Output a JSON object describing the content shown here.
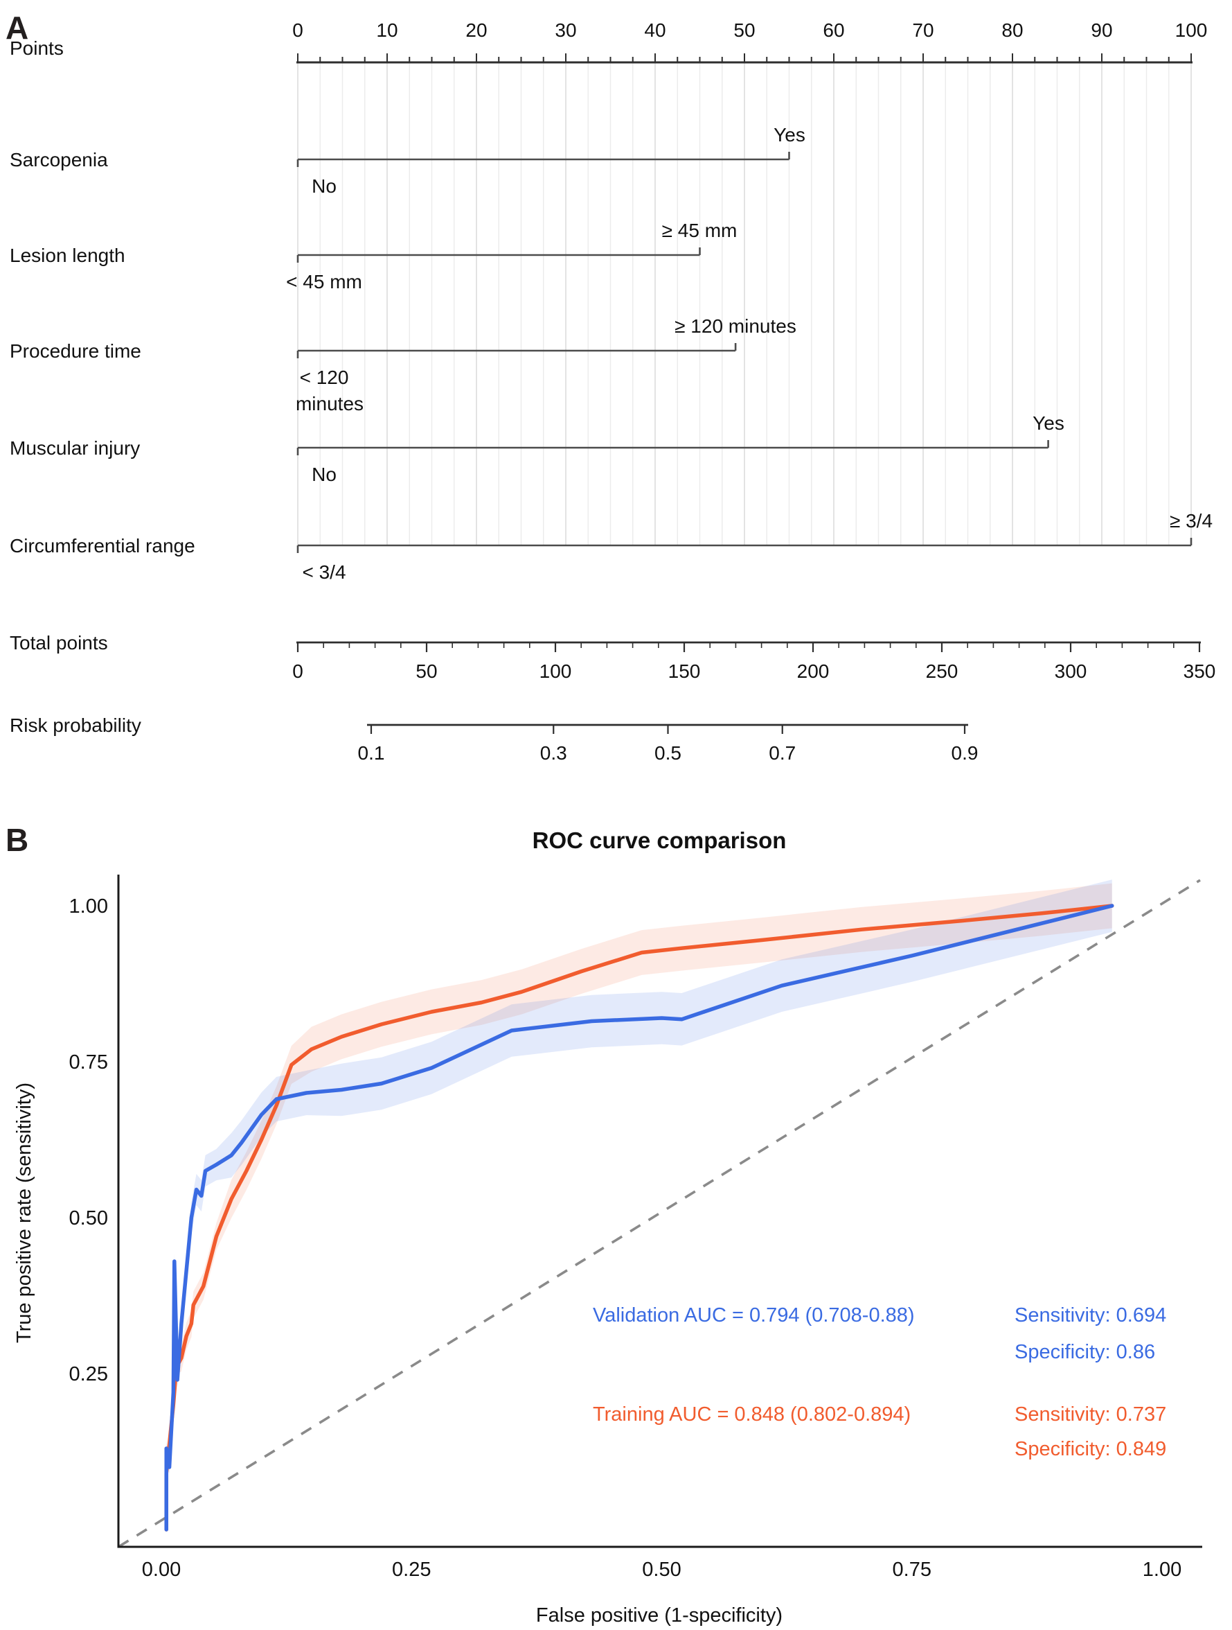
{
  "figure": {
    "panel_a_label": "A",
    "panel_b_label": "B"
  },
  "panelA": {
    "points_axis": {
      "label": "Points",
      "min": 0,
      "max": 100,
      "major_step": 10,
      "minor_step": 2.5
    },
    "predictors": [
      {
        "name": "Sarcopenia",
        "low_label": "No",
        "high_label": "Yes",
        "points": 55
      },
      {
        "name": "Lesion length",
        "low_label": "< 45 mm",
        "high_label": "≥ 45 mm",
        "points": 45
      },
      {
        "name": "Procedure time",
        "low_lines": [
          "< 120",
          "minutes"
        ],
        "high_label": "≥ 120 minutes",
        "points": 49
      },
      {
        "name": "Muscular injury",
        "low_label": "No",
        "high_label": "Yes",
        "points": 84
      },
      {
        "name": "Circumferential range",
        "low_label": "< 3/4",
        "high_label": "≥ 3/4",
        "points": 100
      }
    ],
    "total_points_axis": {
      "label": "Total points",
      "min": 0,
      "max": 350,
      "major_step": 50,
      "minor_step": 10
    },
    "risk_axis": {
      "label": "Risk probability",
      "ticks": [
        0.1,
        0.3,
        0.5,
        0.7,
        0.9
      ],
      "scale": "logit"
    }
  },
  "chart_data": {
    "type": "line",
    "title": "ROC curve comparison",
    "xlabel": "False positive (1-specificity)",
    "ylabel": "True positive rate (sensitivity)",
    "xlim": [
      0,
      1
    ],
    "ylim": [
      0,
      1
    ],
    "x_ticks": [
      0,
      0.25,
      0.5,
      0.75,
      1
    ],
    "x_tick_labels": [
      "0.00",
      "0.25",
      "0.50",
      "0.75",
      "1.00"
    ],
    "y_ticks": [
      0.25,
      0.5,
      0.75,
      1
    ],
    "y_tick_labels": [
      "0.25",
      "0.50",
      "0.75",
      "1.00"
    ],
    "grid": false,
    "diagonal_reference": true,
    "legend_position": "none",
    "series": [
      {
        "name": "Training",
        "color": "#F15C2E",
        "band_color": "rgba(241,92,46,0.13)",
        "ci_halfwidth": 0.036,
        "auc": 0.848,
        "auc_ci": [
          0.802,
          0.894
        ],
        "sensitivity": 0.737,
        "specificity": 0.849,
        "x": [
          0.005,
          0.005,
          0.012,
          0.015,
          0.02,
          0.025,
          0.03,
          0.032,
          0.042,
          0.055,
          0.07,
          0.085,
          0.1,
          0.115,
          0.13,
          0.15,
          0.18,
          0.22,
          0.27,
          0.32,
          0.36,
          0.42,
          0.48,
          0.52,
          0.6,
          0.7,
          0.8,
          0.88,
          0.95
        ],
        "y": [
          0.0,
          0.09,
          0.2,
          0.26,
          0.275,
          0.31,
          0.33,
          0.36,
          0.39,
          0.47,
          0.53,
          0.575,
          0.625,
          0.68,
          0.745,
          0.77,
          0.79,
          0.81,
          0.83,
          0.845,
          0.862,
          0.895,
          0.925,
          0.932,
          0.945,
          0.962,
          0.976,
          0.988,
          1.0
        ]
      },
      {
        "name": "Validation",
        "color": "#3A6BE2",
        "band_color": "rgba(58,107,226,0.14)",
        "ci_halfwidth": 0.042,
        "auc": 0.794,
        "auc_ci": [
          0.708,
          0.88
        ],
        "sensitivity": 0.694,
        "specificity": 0.86,
        "x": [
          0.005,
          0.005,
          0.008,
          0.012,
          0.013,
          0.016,
          0.02,
          0.03,
          0.035,
          0.04,
          0.044,
          0.055,
          0.07,
          0.08,
          0.1,
          0.115,
          0.145,
          0.18,
          0.22,
          0.27,
          0.35,
          0.43,
          0.5,
          0.52,
          0.62,
          0.75,
          0.88,
          0.95
        ],
        "y": [
          0.0,
          0.13,
          0.1,
          0.22,
          0.43,
          0.24,
          0.33,
          0.5,
          0.545,
          0.535,
          0.575,
          0.585,
          0.6,
          0.62,
          0.665,
          0.69,
          0.7,
          0.705,
          0.715,
          0.74,
          0.8,
          0.815,
          0.82,
          0.818,
          0.872,
          0.92,
          0.972,
          1.0
        ]
      }
    ],
    "annotations": {
      "validation_auc": "Validation AUC = 0.794 (0.708-0.88)",
      "validation_sensitivity": "Sensitivity: 0.694",
      "validation_specificity": "Specificity: 0.86",
      "training_auc": "Training AUC = 0.848 (0.802-0.894)",
      "training_sensitivity": "Sensitivity: 0.737",
      "training_specificity": "Specificity: 0.849"
    }
  }
}
